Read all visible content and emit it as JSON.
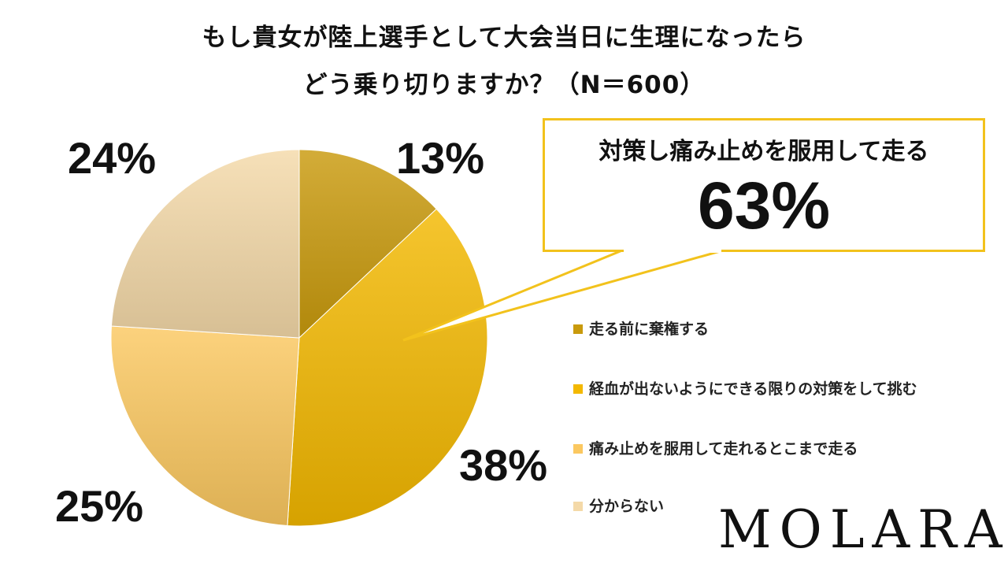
{
  "chart_data": {
    "type": "pie",
    "title_line1": "もし貴女が陸上選手として大会当日に生理になったら",
    "title_line2": "どう乗り切りますか？（N＝600）",
    "slices": [
      {
        "label": "走る前に棄権する",
        "value": 13,
        "value_label": "13%",
        "color": "#c99a0c"
      },
      {
        "label": "経血が出ないようにできる限りの対策をして挑む",
        "value": 38,
        "value_label": "38%",
        "color": "#f3b800"
      },
      {
        "label": "痛み止めを服用して走れるとこまで走る",
        "value": 25,
        "value_label": "25%",
        "color": "#fbc860"
      },
      {
        "label": "分からない",
        "value": 24,
        "value_label": "24%",
        "color": "#f4d9a8"
      }
    ],
    "legend_position": "right",
    "callout": {
      "label": "対策し痛み止めを服用して走る",
      "value": "63%",
      "border_color": "#f2c21c"
    }
  },
  "logo": "MOLARA"
}
